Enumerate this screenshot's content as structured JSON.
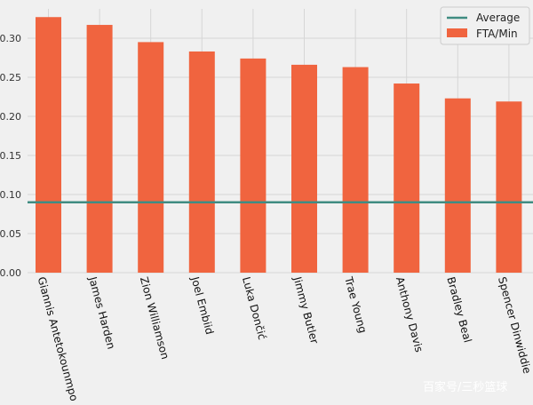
{
  "chart_data": {
    "type": "bar",
    "categories": [
      "Giannis Antetokounmpo",
      "James Harden",
      "Zion Williamson",
      "Joel Embiid",
      "Luka Dončić",
      "Jimmy Butler",
      "Trae Young",
      "Anthony Davis",
      "Bradley Beal",
      "Spencer Dinwiddie"
    ],
    "series": [
      {
        "name": "FTA/Min",
        "values": [
          0.327,
          0.317,
          0.295,
          0.283,
          0.274,
          0.266,
          0.263,
          0.242,
          0.223,
          0.219
        ],
        "color": "#f0643f"
      }
    ],
    "reference_lines": [
      {
        "name": "Average",
        "value": 0.09,
        "color": "#3f8c82"
      }
    ],
    "y_ticks": [
      "0.00",
      "0.05",
      "0.10",
      "0.15",
      "0.20",
      "0.25",
      "0.30"
    ],
    "ylim": [
      0,
      0.33
    ],
    "grid": true,
    "legend_position": "top-right",
    "title": "",
    "xlabel": "",
    "ylabel": ""
  },
  "watermark": "百家号/三秒篮球"
}
